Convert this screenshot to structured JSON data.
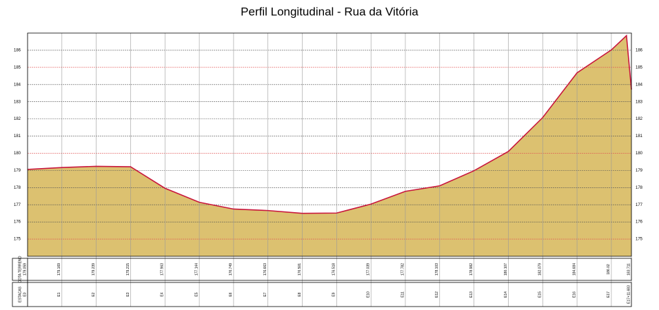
{
  "chart_data": {
    "type": "area",
    "title": "Perfil Longitudinal - Rua da Vitória",
    "x": [
      0,
      20,
      40,
      60,
      80,
      100,
      120,
      140,
      160,
      180,
      200,
      220,
      240,
      260,
      280,
      300,
      320,
      340,
      348.8,
      351.683
    ],
    "values": [
      179.059,
      179.169,
      179.239,
      179.215,
      177.963,
      177.144,
      176.749,
      176.663,
      176.501,
      176.518,
      177.039,
      177.782,
      178.103,
      178.982,
      180.107,
      182.079,
      184.684,
      186.02,
      186.85,
      183.711
    ],
    "color": "#dcc170",
    "line_color": "#c8163c",
    "xlim": [
      0,
      351.683
    ],
    "ylim": [
      174,
      187
    ],
    "yticks": [
      175,
      176,
      177,
      178,
      179,
      180,
      181,
      182,
      183,
      184,
      185,
      186
    ],
    "grid": true,
    "row_headers": [
      "COTA TERRENO",
      "ESTACAS"
    ],
    "station_x": [
      0,
      20,
      40,
      60,
      80,
      100,
      120,
      140,
      160,
      180,
      200,
      220,
      240,
      260,
      280,
      300,
      320,
      340,
      351.683
    ],
    "station_elevations": [
      179.059,
      179.169,
      179.239,
      179.215,
      177.963,
      177.144,
      176.749,
      176.663,
      176.501,
      176.518,
      177.039,
      177.782,
      178.103,
      178.982,
      180.107,
      182.079,
      184.684,
      186.02,
      183.711
    ],
    "stations": [
      "E0",
      "E1",
      "E2",
      "E3",
      "E4",
      "E5",
      "E6",
      "E7",
      "E8",
      "E9",
      "E10",
      "E11",
      "E12",
      "E13",
      "E14",
      "E15",
      "E16",
      "E17",
      "E17+11.683"
    ]
  }
}
